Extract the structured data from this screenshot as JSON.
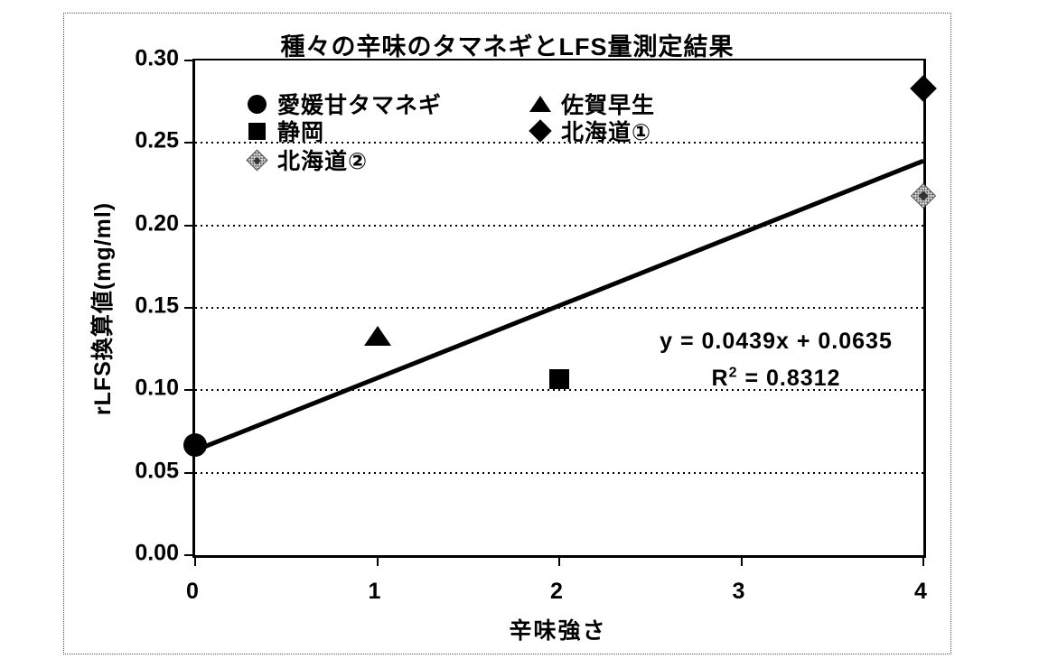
{
  "chart_data": {
    "type": "scatter",
    "title": "種々の辛味のタマネギとLFS量測定結果",
    "xlabel": "辛味強さ",
    "ylabel": "rLFS換算値(mg/ml)",
    "xlim": [
      0,
      4
    ],
    "ylim": [
      0.0,
      0.3
    ],
    "x_ticks": [
      "0",
      "1",
      "2",
      "3",
      "4"
    ],
    "y_ticks": [
      "0.00",
      "0.05",
      "0.10",
      "0.15",
      "0.20",
      "0.25",
      "0.30"
    ],
    "grid": "horizontal dotted lines at each 0.05",
    "legend_position": "inside top-left, two columns",
    "colors": {
      "marker_black": "#000000",
      "marker_gray": "#b0b0b0",
      "line": "#000000"
    },
    "series": [
      {
        "name": "愛媛甘タマネギ",
        "marker": "circle",
        "color": "#000000",
        "points": [
          [
            0,
            0.067
          ]
        ]
      },
      {
        "name": "佐賀早生",
        "marker": "triangle",
        "color": "#000000",
        "points": [
          [
            1,
            0.133
          ]
        ]
      },
      {
        "name": "静岡",
        "marker": "square",
        "color": "#000000",
        "points": [
          [
            2,
            0.107
          ]
        ]
      },
      {
        "name": "北海道①",
        "marker": "diamond",
        "color": "#000000",
        "points": [
          [
            4,
            0.283
          ]
        ]
      },
      {
        "name": "北海道②",
        "marker": "diamond-gray",
        "color": "#b0b0b0",
        "points": [
          [
            4,
            0.218
          ]
        ]
      }
    ],
    "trendline": {
      "slope": 0.0439,
      "intercept": 0.0635,
      "equation": "y = 0.0439x + 0.0635",
      "r2_base": "R",
      "r2_sup": "2",
      "r2_rest": " = 0.8312",
      "color": "#000000"
    }
  }
}
